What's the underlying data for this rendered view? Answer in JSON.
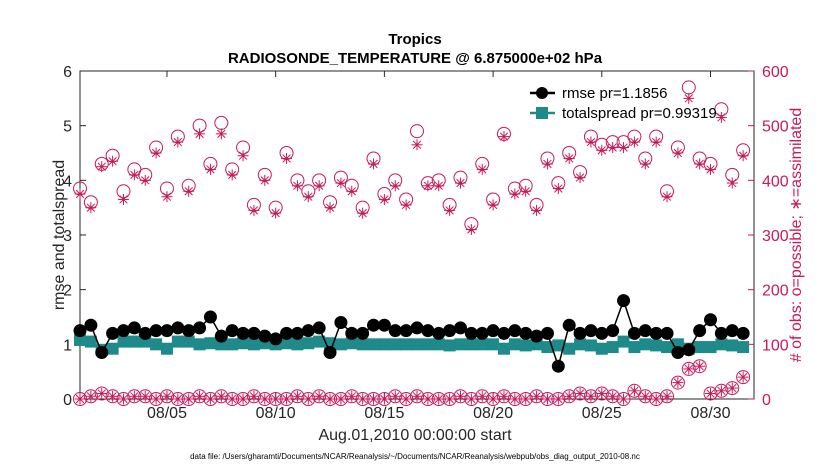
{
  "chart_data": {
    "type": "line",
    "title": "Tropics",
    "subtitle": "RADIOSONDE_TEMPERATURE @ 6.875000e+02 hPa",
    "xlabel": "Aug.01,2010 00:00:00 start",
    "ylabel_left": "rmse and totalspread",
    "ylabel_right": "# of obs: o=possible; ∗=assimilated",
    "footnote": "data file: /Users/gharamti/Documents/NCAR/Reanalysis/~/Documents/NCAR/Reanalysis/webpub/obs_diag_output_2010-08.nc",
    "xlim": [
      1.0,
      32.0
    ],
    "x_ticks": [
      5,
      10,
      15,
      20,
      25,
      30
    ],
    "x_tick_labels": [
      "08/05",
      "08/10",
      "08/15",
      "08/20",
      "08/25",
      "08/30"
    ],
    "ylim_left": [
      0,
      6
    ],
    "y_ticks_left": [
      "0",
      "1",
      "2",
      "3",
      "4",
      "5",
      "6"
    ],
    "ylim_right": [
      0,
      600
    ],
    "y_ticks_right": [
      "0",
      "100",
      "200",
      "300",
      "400",
      "500",
      "600"
    ],
    "x": [
      1.0,
      1.5,
      2.0,
      2.5,
      3.0,
      3.5,
      4.0,
      4.5,
      5.0,
      5.5,
      6.0,
      6.5,
      7.0,
      7.5,
      8.0,
      8.5,
      9.0,
      9.5,
      10.0,
      10.5,
      11.0,
      11.5,
      12.0,
      12.5,
      13.0,
      13.5,
      14.0,
      14.5,
      15.0,
      15.5,
      16.0,
      16.5,
      17.0,
      17.5,
      18.0,
      18.5,
      19.0,
      19.5,
      20.0,
      20.5,
      21.0,
      21.5,
      22.0,
      22.5,
      23.0,
      23.5,
      24.0,
      24.5,
      25.0,
      25.5,
      26.0,
      26.5,
      27.0,
      27.5,
      28.0,
      28.5,
      29.0,
      29.5,
      30.0,
      30.5,
      31.0,
      31.5
    ],
    "series": [
      {
        "name": "rmse",
        "legend": "rmse pr=1.1856",
        "axis": "left",
        "color": "#000000",
        "marker": "circle",
        "values": [
          1.25,
          1.35,
          0.85,
          1.2,
          1.25,
          1.3,
          1.2,
          1.25,
          1.25,
          1.3,
          1.25,
          1.3,
          1.5,
          1.15,
          1.25,
          1.2,
          1.2,
          1.15,
          1.1,
          1.2,
          1.2,
          1.25,
          1.3,
          0.85,
          1.4,
          1.2,
          1.2,
          1.35,
          1.35,
          1.25,
          1.25,
          1.3,
          1.25,
          1.2,
          1.25,
          1.3,
          1.2,
          1.2,
          1.25,
          1.2,
          1.25,
          1.2,
          1.15,
          1.2,
          0.6,
          1.35,
          1.2,
          1.25,
          1.2,
          1.25,
          1.8,
          1.2,
          1.25,
          1.2,
          1.2,
          0.85,
          0.9,
          1.25,
          1.45,
          1.2,
          1.25,
          1.2
        ]
      },
      {
        "name": "totalspread",
        "legend": "totalspread pr=0.99319",
        "axis": "left",
        "color": "#1f8a8a",
        "marker": "square",
        "values": [
          1.08,
          1.05,
          0.9,
          0.92,
          1.05,
          1.05,
          1.05,
          1.0,
          0.92,
          1.05,
          1.05,
          1.0,
          1.02,
          1.0,
          1.0,
          1.02,
          1.0,
          1.02,
          1.0,
          1.02,
          1.0,
          1.02,
          1.05,
          1.02,
          1.0,
          1.02,
          1.0,
          1.0,
          1.0,
          1.0,
          1.0,
          1.0,
          1.0,
          1.0,
          0.98,
          1.0,
          1.0,
          1.0,
          1.0,
          0.92,
          1.0,
          0.98,
          1.0,
          0.95,
          0.98,
          0.92,
          1.0,
          0.98,
          0.92,
          0.95,
          1.05,
          0.95,
          1.0,
          0.98,
          0.95,
          1.0,
          0.92,
          0.95,
          0.95,
          1.0,
          0.98,
          0.95
        ]
      },
      {
        "name": "obs_possible_upper",
        "axis": "right",
        "color": "#c8195a",
        "marker": "open-circle",
        "values": [
          385,
          360,
          430,
          445,
          380,
          420,
          410,
          460,
          385,
          480,
          390,
          500,
          430,
          505,
          420,
          460,
          355,
          410,
          350,
          450,
          400,
          380,
          400,
          360,
          405,
          390,
          350,
          440,
          375,
          400,
          365,
          490,
          395,
          400,
          355,
          405,
          320,
          430,
          365,
          485,
          385,
          390,
          355,
          440,
          395,
          450,
          415,
          480,
          465,
          470,
          470,
          480,
          440,
          480,
          380,
          460,
          570,
          440,
          430,
          530,
          410,
          455
        ],
        "note": "open circles = possible obs count (right axis)"
      },
      {
        "name": "obs_assimilated_upper",
        "axis": "right",
        "color": "#c8195a",
        "marker": "asterisk",
        "values": [
          375,
          350,
          425,
          435,
          365,
          410,
          400,
          450,
          370,
          470,
          380,
          485,
          420,
          485,
          410,
          445,
          345,
          400,
          340,
          440,
          390,
          370,
          390,
          350,
          395,
          380,
          340,
          430,
          365,
          390,
          355,
          465,
          390,
          390,
          345,
          395,
          310,
          420,
          355,
          480,
          375,
          380,
          345,
          430,
          385,
          440,
          405,
          470,
          455,
          460,
          460,
          470,
          430,
          470,
          370,
          450,
          550,
          430,
          420,
          515,
          395,
          445
        ]
      },
      {
        "name": "obs_lower",
        "axis": "right",
        "color": "#c8195a",
        "marker": "open-circle",
        "values": [
          0,
          5,
          10,
          5,
          0,
          5,
          5,
          0,
          5,
          0,
          0,
          5,
          0,
          5,
          0,
          0,
          5,
          0,
          0,
          0,
          5,
          0,
          5,
          0,
          0,
          5,
          0,
          0,
          0,
          5,
          0,
          5,
          0,
          0,
          0,
          5,
          0,
          5,
          0,
          5,
          0,
          0,
          5,
          0,
          0,
          5,
          10,
          5,
          10,
          5,
          0,
          15,
          5,
          0,
          5,
          30,
          55,
          60,
          10,
          15,
          20,
          40
        ]
      }
    ],
    "legend_position": "top-right",
    "grid": false
  }
}
